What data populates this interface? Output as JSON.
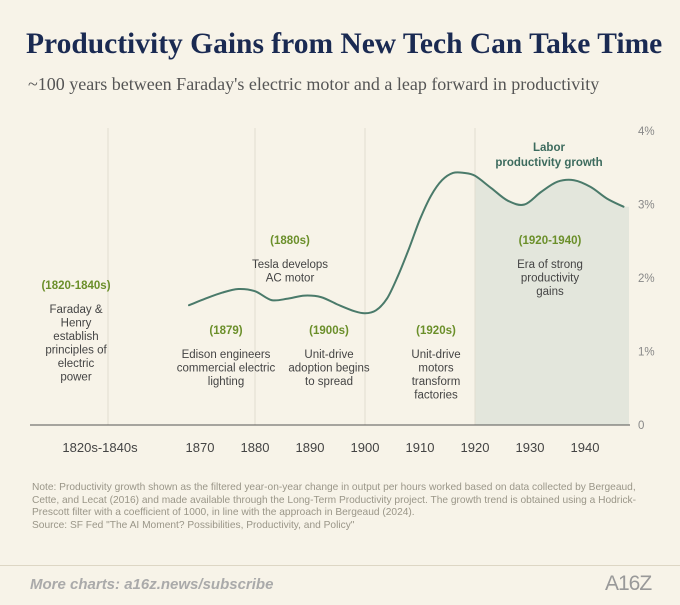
{
  "title": "Productivity Gains from New Tech Can Take Time",
  "subtitle": "~100 years between Faraday's electric motor and a leap forward in productivity",
  "chart_data": {
    "type": "line",
    "ylim": [
      0,
      4
    ],
    "yticks": [
      "0",
      "1%",
      "2%",
      "3%",
      "4%"
    ],
    "xticks": [
      "1820s-1840s",
      "1870",
      "1880",
      "1890",
      "1900",
      "1910",
      "1920",
      "1930",
      "1940"
    ],
    "series": [
      {
        "name": "Labor productivity growth",
        "x": [
          1868,
          1871,
          1874,
          1877,
          1880,
          1883,
          1886,
          1889,
          1892,
          1895,
          1898,
          1900,
          1902,
          1904,
          1906,
          1908,
          1910,
          1912,
          1914,
          1916,
          1918,
          1920,
          1923,
          1926,
          1929,
          1932,
          1935,
          1938,
          1941,
          1944,
          1947
        ],
        "values": [
          1.63,
          1.72,
          1.8,
          1.85,
          1.82,
          1.7,
          1.72,
          1.76,
          1.74,
          1.64,
          1.55,
          1.52,
          1.56,
          1.72,
          2.03,
          2.4,
          2.8,
          3.12,
          3.33,
          3.43,
          3.43,
          3.39,
          3.22,
          3.05,
          3.0,
          3.17,
          3.31,
          3.33,
          3.24,
          3.08,
          2.97
        ]
      }
    ],
    "shaded_region": [
      1920,
      1948
    ],
    "annotations": [
      {
        "date": "(1820-1840s)",
        "lines": [
          "Faraday &",
          "Henry",
          "establish",
          "principles of",
          "electric",
          "power"
        ]
      },
      {
        "date": "(1879)",
        "lines": [
          "Edison engineers",
          "commercial electric",
          "lighting"
        ]
      },
      {
        "date": "(1880s)",
        "lines": [
          "Tesla develops",
          "AC motor"
        ]
      },
      {
        "date": "(1900s)",
        "lines": [
          "Unit-drive",
          "adoption begins",
          "to spread"
        ]
      },
      {
        "date": "(1920s)",
        "lines": [
          "Unit-drive",
          "motors",
          "transform",
          "factories"
        ]
      },
      {
        "date": "(1920-1940)",
        "lines": [
          "Era of strong",
          "productivity",
          "gains"
        ]
      }
    ],
    "series_label_lines": [
      "Labor",
      "productivity growth"
    ]
  },
  "note": "Note: Productivity growth shown as the filtered year-on-year change in output per hours worked based on data collected by Bergeaud, Cette, and Lecat (2016) and made available through the Long-Term Productivity project. The growth trend is obtained using a Hodrick-Prescott filter with a coefficient of 1000, in line with the approach in Bergeaud (2024).",
  "source": "Source: SF Fed \"The AI Moment? Possibilities, Productivity, and Policy\"",
  "footer": "More charts: a16z.news/subscribe",
  "logo": "A16Z",
  "colors": {
    "line": "#4a7a6a",
    "shade": "#e3e6dc",
    "annotation_date": "#6b8f2a",
    "title": "#1a2a52"
  }
}
